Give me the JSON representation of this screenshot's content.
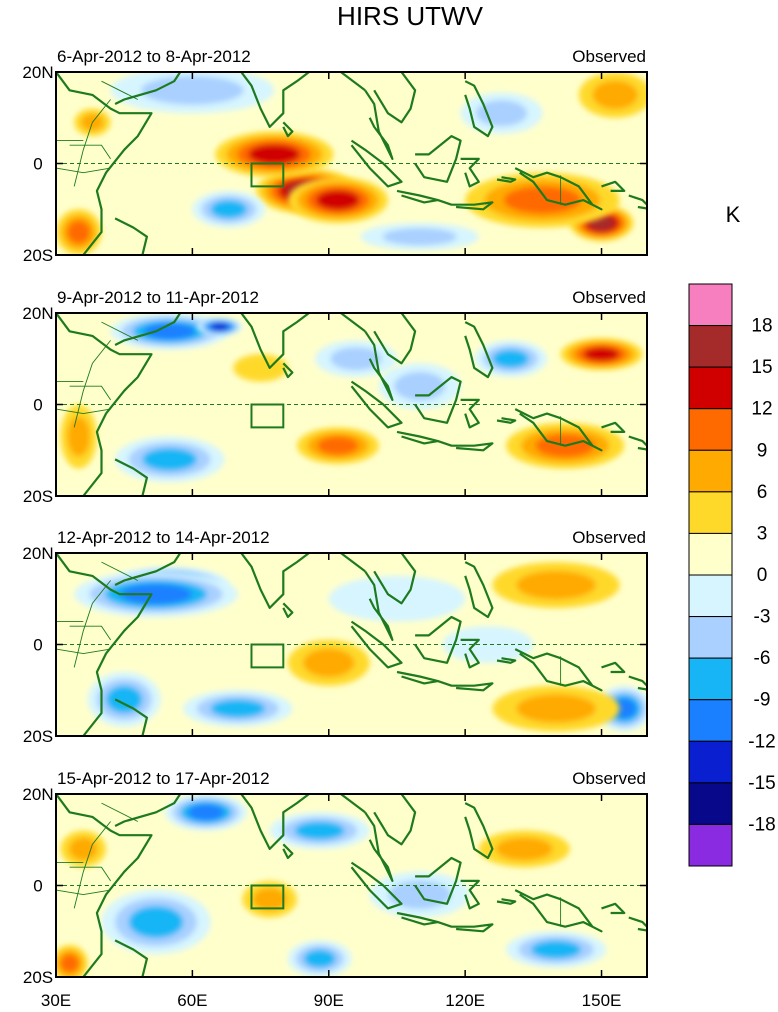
{
  "chart_data": {
    "type": "heatmap",
    "title": "HIRS UTWV",
    "units_label": "K",
    "x_ticks": [
      "30E",
      "60E",
      "90E",
      "120E",
      "150E"
    ],
    "x_tick_values": [
      30,
      60,
      90,
      120,
      150
    ],
    "x_range": [
      30,
      160
    ],
    "y_ticks": [
      "20N",
      "0",
      "20S"
    ],
    "y_tick_values": [
      20,
      0,
      -20
    ],
    "y_range": [
      -20,
      20
    ],
    "box_region": {
      "lon": [
        73,
        80
      ],
      "lat": [
        -5,
        0
      ]
    },
    "colorbar": {
      "levels": [
        "18",
        "15",
        "12",
        "9",
        "6",
        "3",
        "0",
        "-3",
        "-6",
        "-9",
        "-12",
        "-15",
        "-18"
      ],
      "colors": [
        "#f77fbf",
        "#a52a2a",
        "#d10000",
        "#ff6a00",
        "#ffaa00",
        "#ffd92a",
        "#ffffcc",
        "#d6f5ff",
        "#a9d0ff",
        "#17b5f5",
        "#1a80ff",
        "#0a1fcf",
        "#08088a",
        "#8a2be2"
      ]
    },
    "panels": [
      {
        "left_title": "6-Apr-2012 to 8-Apr-2012",
        "right_title": "Observed",
        "features": [
          {
            "lon": 85,
            "lat": -6,
            "value": 15,
            "w": 22,
            "h": 10
          },
          {
            "lon": 78,
            "lat": 2,
            "value": 12,
            "w": 26,
            "h": 10
          },
          {
            "lon": 92,
            "lat": -8,
            "value": 12,
            "w": 22,
            "h": 10
          },
          {
            "lon": 150,
            "lat": -13,
            "value": 15,
            "w": 14,
            "h": 8
          },
          {
            "lon": 137,
            "lat": -8,
            "value": 9,
            "w": 34,
            "h": 12
          },
          {
            "lon": 35,
            "lat": -15,
            "value": 9,
            "w": 10,
            "h": 10
          },
          {
            "lon": 38,
            "lat": 9,
            "value": 6,
            "w": 8,
            "h": 6
          },
          {
            "lon": 153,
            "lat": 15,
            "value": 6,
            "w": 16,
            "h": 10
          },
          {
            "lon": 60,
            "lat": 16,
            "value": -6,
            "w": 36,
            "h": 10
          },
          {
            "lon": 68,
            "lat": -10,
            "value": -9,
            "w": 16,
            "h": 8
          },
          {
            "lon": 128,
            "lat": 11,
            "value": -6,
            "w": 18,
            "h": 9
          },
          {
            "lon": 110,
            "lat": -16,
            "value": -6,
            "w": 26,
            "h": 6
          }
        ]
      },
      {
        "left_title": "9-Apr-2012 to 11-Apr-2012",
        "right_title": "Observed",
        "features": [
          {
            "lon": 55,
            "lat": 16,
            "value": -12,
            "w": 26,
            "h": 8
          },
          {
            "lon": 66,
            "lat": 17,
            "value": -15,
            "w": 10,
            "h": 4
          },
          {
            "lon": 130,
            "lat": 10,
            "value": -9,
            "w": 16,
            "h": 8
          },
          {
            "lon": 96,
            "lat": 10,
            "value": -6,
            "w": 18,
            "h": 8
          },
          {
            "lon": 55,
            "lat": -12,
            "value": -9,
            "w": 24,
            "h": 10
          },
          {
            "lon": 110,
            "lat": 4,
            "value": -6,
            "w": 18,
            "h": 10
          },
          {
            "lon": 150,
            "lat": 11,
            "value": 12,
            "w": 18,
            "h": 7
          },
          {
            "lon": 142,
            "lat": -9,
            "value": 9,
            "w": 26,
            "h": 10
          },
          {
            "lon": 92,
            "lat": -9,
            "value": 9,
            "w": 18,
            "h": 8
          },
          {
            "lon": 35,
            "lat": -7,
            "value": 6,
            "w": 8,
            "h": 14
          },
          {
            "lon": 75,
            "lat": 8,
            "value": 3,
            "w": 12,
            "h": 6
          }
        ]
      },
      {
        "left_title": "12-Apr-2012 to 14-Apr-2012",
        "right_title": "Observed",
        "features": [
          {
            "lon": 55,
            "lat": 13,
            "value": -15,
            "w": 26,
            "h": 8
          },
          {
            "lon": 52,
            "lat": 11,
            "value": -12,
            "w": 36,
            "h": 10
          },
          {
            "lon": 45,
            "lat": -12,
            "value": -9,
            "w": 16,
            "h": 12
          },
          {
            "lon": 70,
            "lat": -14,
            "value": -9,
            "w": 24,
            "h": 8
          },
          {
            "lon": 155,
            "lat": -14,
            "value": -12,
            "w": 12,
            "h": 10
          },
          {
            "lon": 90,
            "lat": -4,
            "value": 6,
            "w": 18,
            "h": 10
          },
          {
            "lon": 140,
            "lat": 13,
            "value": 6,
            "w": 28,
            "h": 10
          },
          {
            "lon": 140,
            "lat": -14,
            "value": 6,
            "w": 28,
            "h": 10
          },
          {
            "lon": 105,
            "lat": 10,
            "value": -3,
            "w": 30,
            "h": 10
          },
          {
            "lon": 125,
            "lat": 0,
            "value": -3,
            "w": 20,
            "h": 8
          }
        ]
      },
      {
        "left_title": "15-Apr-2012 to 17-Apr-2012",
        "right_title": "Observed",
        "features": [
          {
            "lon": 63,
            "lat": 16,
            "value": -12,
            "w": 18,
            "h": 8
          },
          {
            "lon": 88,
            "lat": 12,
            "value": -9,
            "w": 22,
            "h": 8
          },
          {
            "lon": 36,
            "lat": 8,
            "value": 12,
            "w": 6,
            "h": 4
          },
          {
            "lon": 36,
            "lat": 8,
            "value": 6,
            "w": 10,
            "h": 8
          },
          {
            "lon": 33,
            "lat": -17,
            "value": 9,
            "w": 8,
            "h": 8
          },
          {
            "lon": 52,
            "lat": -8,
            "value": -9,
            "w": 24,
            "h": 14
          },
          {
            "lon": 88,
            "lat": -16,
            "value": -9,
            "w": 14,
            "h": 8
          },
          {
            "lon": 77,
            "lat": -3,
            "value": 6,
            "w": 12,
            "h": 8
          },
          {
            "lon": 133,
            "lat": 8,
            "value": 6,
            "w": 20,
            "h": 8
          },
          {
            "lon": 140,
            "lat": -14,
            "value": -9,
            "w": 22,
            "h": 8
          },
          {
            "lon": 110,
            "lat": -2,
            "value": -6,
            "w": 22,
            "h": 10
          }
        ]
      }
    ]
  }
}
